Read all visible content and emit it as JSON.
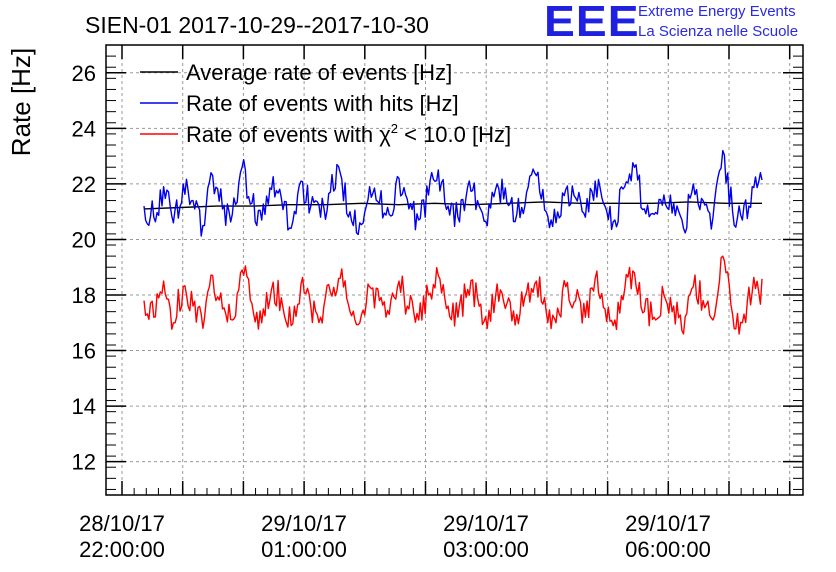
{
  "logo": {
    "mark": "EEE",
    "line1": "Extreme Energy Events",
    "line2": "La Scienza nelle Scuole"
  },
  "chart_data": {
    "type": "line",
    "title": "SIEN-01 2017-10-29--2017-10-30",
    "ylabel": "Rate [Hz]",
    "xlabel": "",
    "ylim": [
      10.8,
      27.0
    ],
    "y_ticks": [
      "12",
      "14",
      "16",
      "18",
      "20",
      "22",
      "24",
      "26"
    ],
    "x_ticks": [
      {
        "date": "28/10/17",
        "time": "22:00:00"
      },
      {
        "date": "29/10/17",
        "time": "01:00:00"
      },
      {
        "date": "29/10/17",
        "time": "03:00:00"
      },
      {
        "date": "29/10/17",
        "time": "06:00:00"
      }
    ],
    "grid": true,
    "legend_position": "top-left",
    "colors": {
      "average": "#000000",
      "hits": "#0000ee",
      "chi2": "#ff0000"
    },
    "series": [
      {
        "key": "average",
        "name": "Average rate of events [Hz]",
        "values": [
          21.1,
          21.15,
          21.2,
          21.2,
          21.25,
          21.25,
          21.3,
          21.25,
          21.3,
          21.25,
          21.3,
          21.35,
          21.3,
          21.3,
          21.3,
          21.35,
          21.3,
          21.3
        ]
      },
      {
        "key": "hits",
        "name": "Rate of events with hits [Hz]",
        "values": [
          21.2,
          20.8,
          21.9,
          20.6,
          22.0,
          21.4,
          20.5,
          22.3,
          21.1,
          20.9,
          22.6,
          21.3,
          20.7,
          21.8,
          21.5,
          20.4,
          22.1,
          21.2,
          20.8,
          21.7,
          22.4,
          21.0,
          20.6,
          21.9,
          21.3,
          20.9,
          22.2,
          21.1,
          20.7,
          21.6,
          22.5,
          21.2,
          20.8,
          21.9,
          21.4,
          20.5,
          22.0,
          21.3,
          20.9,
          21.7,
          22.3,
          21.0,
          20.6,
          21.8,
          21.5,
          20.8,
          22.1,
          21.2,
          20.7,
          21.9,
          22.6,
          21.1,
          20.9,
          21.6,
          21.3,
          20.4,
          22.0,
          21.4,
          20.8,
          23.2,
          21.0,
          20.7,
          21.9,
          22.0
        ]
      },
      {
        "key": "chi2",
        "name": "Rate of events with χ² < 10.0 [Hz]",
        "legend_main": "Rate of events with χ",
        "legend_sup": "2",
        "legend_tail": " < 10.0 [Hz]",
        "values": [
          17.8,
          17.2,
          18.5,
          17.0,
          18.3,
          17.6,
          16.8,
          18.7,
          17.5,
          17.1,
          18.9,
          17.7,
          17.0,
          18.2,
          17.9,
          16.9,
          18.4,
          17.6,
          17.2,
          18.1,
          18.6,
          17.4,
          17.0,
          18.3,
          17.8,
          17.3,
          18.5,
          17.5,
          17.1,
          18.0,
          18.7,
          17.6,
          17.2,
          18.2,
          17.9,
          16.8,
          18.4,
          17.7,
          17.3,
          18.1,
          18.5,
          17.4,
          17.0,
          18.3,
          17.8,
          17.2,
          18.6,
          17.5,
          17.1,
          18.2,
          18.8,
          17.4,
          17.2,
          18.0,
          17.6,
          16.6,
          18.3,
          17.8,
          17.1,
          19.4,
          17.3,
          17.0,
          18.1,
          18.2
        ]
      }
    ]
  }
}
